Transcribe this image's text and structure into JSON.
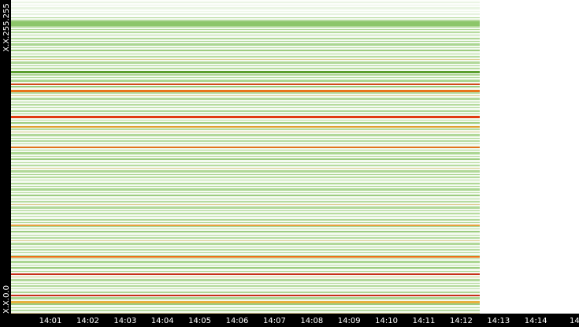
{
  "chart_data": {
    "type": "heatmap",
    "y_labels": [
      "X.X.255.255",
      "X.X.0.0"
    ],
    "categories": [
      "14:01",
      "14:02",
      "14:03",
      "14:04",
      "14:05",
      "14:06",
      "14:07",
      "14:08",
      "14:09",
      "14:10",
      "14:11",
      "14:12",
      "14:13",
      "14:14",
      "14"
    ]
  }
}
